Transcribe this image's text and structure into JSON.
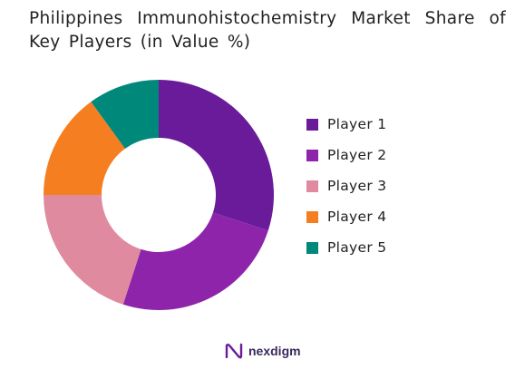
{
  "title": "Philippines Immunohistochemistry Market Share of Key Players (in Value %)",
  "chart_data": {
    "type": "pie",
    "title": "Philippines Immunohistochemistry Market Share of Key Players (in Value %)",
    "donut": true,
    "legend_position": "right",
    "categories": [
      "Player 1",
      "Player 2",
      "Player 3",
      "Player 4",
      "Player 5"
    ],
    "values": [
      30,
      25,
      20,
      15,
      10
    ],
    "colors": [
      "#6a1b9a",
      "#8e24aa",
      "#e08aa0",
      "#f57f20",
      "#00897b"
    ]
  },
  "branding": {
    "name": "nexdigm",
    "logo_icon": "nexdigm-logo-icon"
  }
}
